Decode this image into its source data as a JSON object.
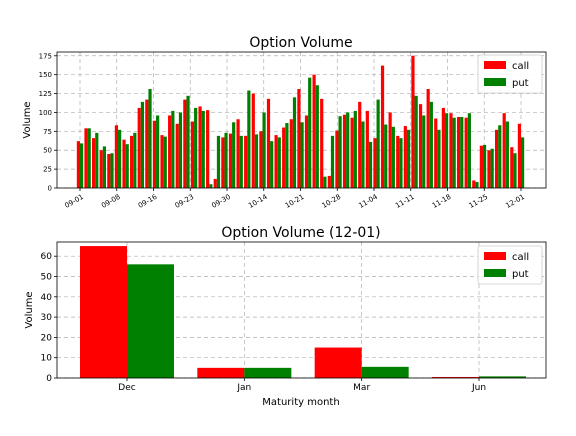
{
  "colors": {
    "call": "#ff0000",
    "put": "#008000"
  },
  "chart_data": [
    {
      "type": "bar",
      "title": "Option Volume",
      "xlabel": "",
      "ylabel": "Volume",
      "ylim": [
        0,
        180
      ],
      "yticks": [
        "0",
        "25",
        "50",
        "75",
        "100",
        "125",
        "150",
        "175"
      ],
      "xtick_labels": [
        "09-01",
        "09-08",
        "09-16",
        "09-23",
        "09-30",
        "10-14",
        "10-21",
        "10-28",
        "11-04",
        "11-11",
        "11-18",
        "11-25",
        "12-01"
      ],
      "grid": true,
      "legend_position": "top-right",
      "series": [
        {
          "name": "call",
          "values": [
            62,
            79,
            66,
            50,
            45,
            83,
            64,
            69,
            106,
            117,
            89,
            70,
            96,
            85,
            117,
            88,
            108,
            103,
            12,
            67,
            72,
            91,
            69,
            125,
            75,
            118,
            70,
            80,
            91,
            131,
            96,
            150,
            118,
            16,
            76,
            97,
            93,
            114,
            102,
            66,
            162,
            100,
            69,
            82,
            175,
            111,
            131,
            92,
            106,
            99,
            94,
            93,
            10,
            56,
            50,
            77,
            99,
            54,
            85
          ]
        },
        {
          "name": "put",
          "values": [
            59,
            79,
            73,
            55,
            46,
            77,
            58,
            73,
            114,
            131,
            96,
            68,
            102,
            100,
            122,
            106,
            102,
            5,
            69,
            73,
            87,
            69,
            129,
            71,
            100,
            62,
            67,
            86,
            120,
            87,
            146,
            136,
            15,
            69,
            95,
            100,
            102,
            88,
            61,
            117,
            84,
            81,
            66,
            77,
            122,
            96,
            114,
            77,
            99,
            93,
            94,
            99,
            8,
            57,
            52,
            83,
            88,
            46,
            67
          ]
        }
      ]
    },
    {
      "type": "bar",
      "title": "Option Volume (12-01)",
      "xlabel": "Maturity month",
      "ylabel": "Volume",
      "ylim": [
        0,
        67
      ],
      "yticks": [
        "0",
        "10",
        "20",
        "30",
        "40",
        "50",
        "60"
      ],
      "categories": [
        "Dec",
        "Jan",
        "Mar",
        "Jun"
      ],
      "grid": true,
      "legend_position": "top-right",
      "series": [
        {
          "name": "call",
          "values": [
            65,
            5,
            15,
            0.5
          ]
        },
        {
          "name": "put",
          "values": [
            56,
            5,
            5.5,
            0.8
          ]
        }
      ]
    }
  ]
}
